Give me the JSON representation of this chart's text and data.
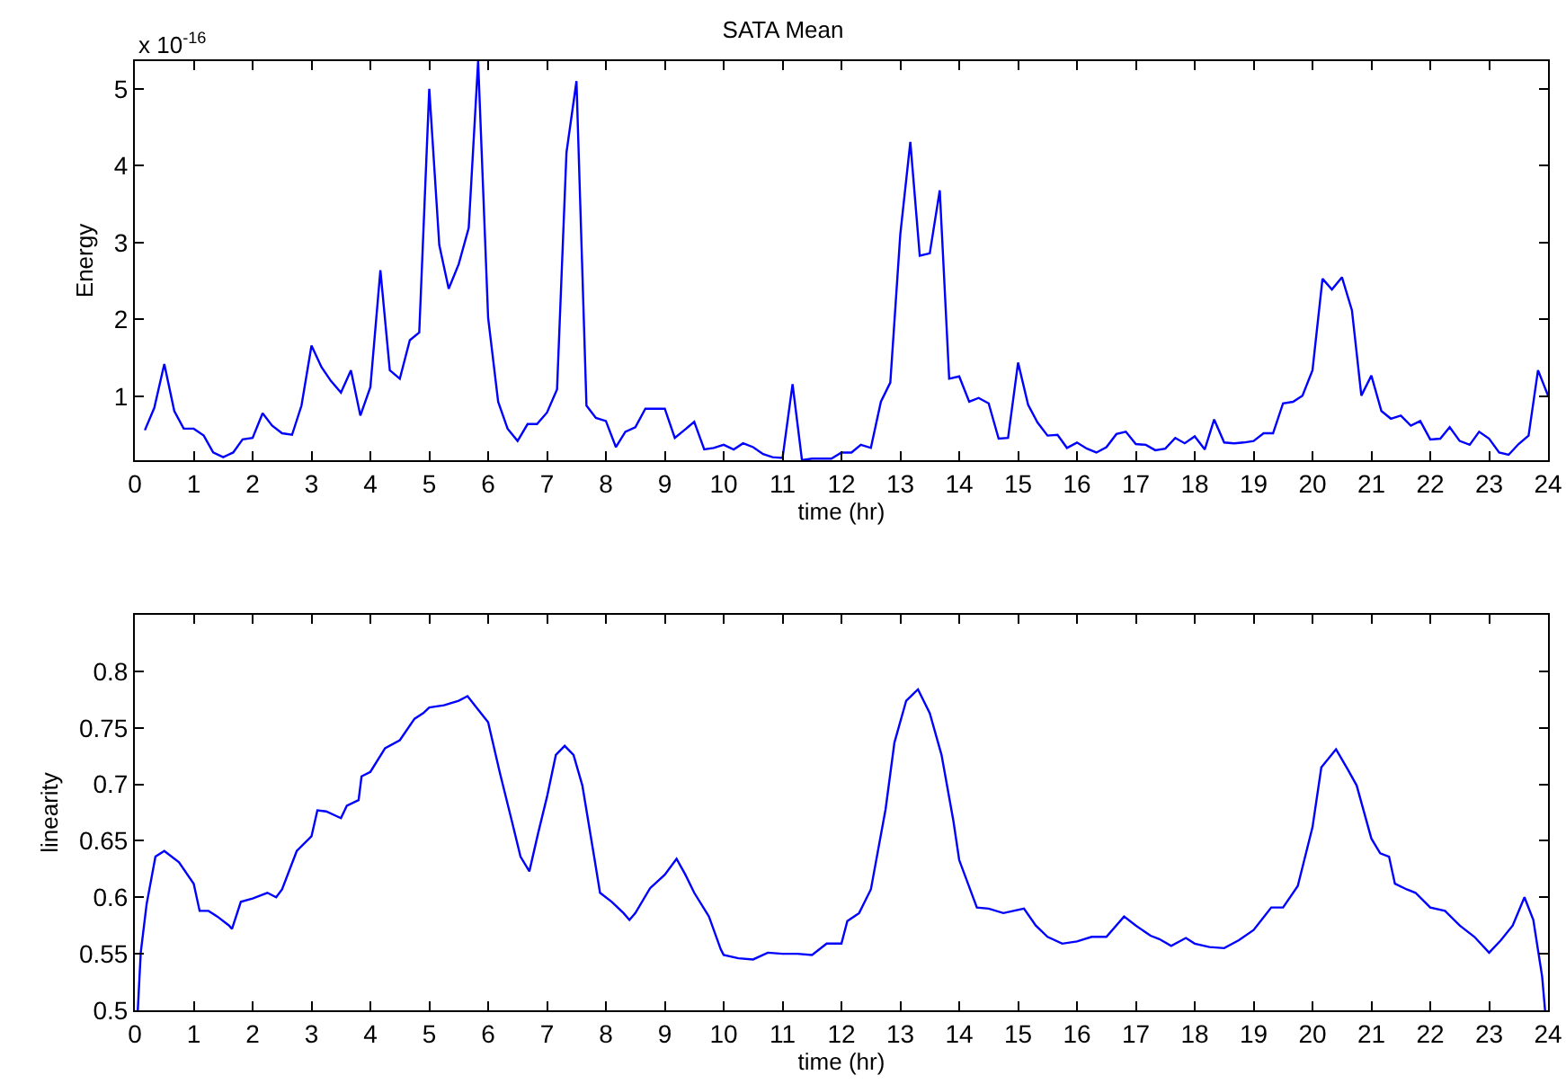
{
  "chart_data": [
    {
      "type": "line",
      "title": "SATA Mean",
      "xlabel": "time (hr)",
      "ylabel": "Energy",
      "annotations": [
        "x 10$^{-16}$"
      ],
      "x": [
        0.17,
        0.33,
        0.5,
        0.67,
        0.83,
        1,
        1.17,
        1.33,
        1.5,
        1.67,
        1.83,
        2,
        2.17,
        2.33,
        2.5,
        2.67,
        2.83,
        3,
        3.17,
        3.33,
        3.5,
        3.67,
        3.83,
        4,
        4.17,
        4.33,
        4.5,
        4.67,
        4.83,
        5,
        5.17,
        5.33,
        5.5,
        5.67,
        5.83,
        6,
        6.17,
        6.33,
        6.5,
        6.67,
        6.83,
        7,
        7.17,
        7.33,
        7.5,
        7.67,
        7.83,
        8,
        8.17,
        8.33,
        8.5,
        8.67,
        8.83,
        9,
        9.17,
        9.33,
        9.5,
        9.67,
        9.83,
        10,
        10.17,
        10.33,
        10.5,
        10.67,
        10.83,
        11,
        11.17,
        11.33,
        11.5,
        11.67,
        11.83,
        12,
        12.17,
        12.33,
        12.5,
        12.67,
        12.83,
        13,
        13.17,
        13.33,
        13.5,
        13.67,
        13.83,
        14,
        14.17,
        14.33,
        14.5,
        14.67,
        14.83,
        15,
        15.17,
        15.33,
        15.5,
        15.67,
        15.83,
        16,
        16.17,
        16.33,
        16.5,
        16.67,
        16.83,
        17,
        17.17,
        17.33,
        17.5,
        17.67,
        17.83,
        18,
        18.17,
        18.33,
        18.5,
        18.67,
        18.83,
        19,
        19.17,
        19.33,
        19.5,
        19.67,
        19.83,
        20,
        20.17,
        20.33,
        20.5,
        20.67,
        20.83,
        21,
        21.17,
        21.33,
        21.5,
        21.67,
        21.83,
        22,
        22.17,
        22.33,
        22.5,
        22.67,
        22.83,
        23,
        23.17,
        23.33,
        23.5,
        23.67,
        23.83,
        24
      ],
      "series": [
        {
          "color": "#0000ff",
          "values": [
            0.56,
            0.85,
            1.42,
            0.81,
            0.58,
            0.58,
            0.49,
            0.27,
            0.21,
            0.27,
            0.44,
            0.46,
            0.78,
            0.62,
            0.52,
            0.5,
            0.88,
            1.66,
            1.38,
            1.2,
            1.05,
            1.34,
            0.75,
            1.12,
            2.64,
            1.34,
            1.23,
            1.73,
            1.83,
            5.0,
            2.97,
            2.4,
            2.72,
            3.19,
            5.36,
            2.02,
            0.93,
            0.58,
            0.42,
            0.64,
            0.64,
            0.79,
            1.09,
            4.17,
            5.1,
            0.88,
            0.72,
            0.68,
            0.34,
            0.54,
            0.6,
            0.84,
            0.84,
            0.84,
            0.46,
            0.56,
            0.67,
            0.31,
            0.33,
            0.37,
            0.31,
            0.39,
            0.34,
            0.25,
            0.21,
            0.2,
            1.16,
            0.17,
            0.19,
            0.19,
            0.19,
            0.27,
            0.27,
            0.37,
            0.33,
            0.93,
            1.18,
            3.11,
            4.31,
            2.83,
            2.86,
            3.68,
            1.23,
            1.26,
            0.93,
            0.98,
            0.91,
            0.45,
            0.46,
            1.44,
            0.89,
            0.66,
            0.49,
            0.5,
            0.33,
            0.4,
            0.32,
            0.27,
            0.34,
            0.51,
            0.54,
            0.38,
            0.37,
            0.3,
            0.32,
            0.46,
            0.39,
            0.48,
            0.31,
            0.7,
            0.4,
            0.39,
            0.4,
            0.42,
            0.52,
            0.52,
            0.91,
            0.93,
            1.01,
            1.34,
            2.53,
            2.39,
            2.55,
            2.12,
            1.01,
            1.27,
            0.81,
            0.71,
            0.75,
            0.62,
            0.68,
            0.44,
            0.45,
            0.6,
            0.42,
            0.37,
            0.54,
            0.45,
            0.27,
            0.24,
            0.38,
            0.49,
            1.34,
            1.01
          ]
        }
      ],
      "xlim": [
        0,
        24
      ],
      "xticks": [
        0,
        1,
        2,
        3,
        4,
        5,
        6,
        7,
        8,
        9,
        10,
        11,
        12,
        13,
        14,
        15,
        16,
        17,
        18,
        19,
        20,
        21,
        22,
        23,
        24
      ],
      "ylim": [
        0.17,
        5.36
      ],
      "yticks": [
        1,
        2,
        3,
        4,
        5
      ]
    },
    {
      "type": "line",
      "xlabel": "time (hr)",
      "ylabel": "linearity",
      "x": [
        0.05,
        0.1,
        0.2,
        0.35,
        0.5,
        0.75,
        1.0,
        1.1,
        1.25,
        1.4,
        1.6,
        1.65,
        1.8,
        2.0,
        2.25,
        2.4,
        2.5,
        2.75,
        3.0,
        3.1,
        3.25,
        3.5,
        3.6,
        3.8,
        3.85,
        4.0,
        4.25,
        4.5,
        4.75,
        4.9,
        5.0,
        5.25,
        5.5,
        5.65,
        5.8,
        6.0,
        6.2,
        6.4,
        6.55,
        6.7,
        6.85,
        7.0,
        7.15,
        7.3,
        7.45,
        7.6,
        7.8,
        7.9,
        8.1,
        8.3,
        8.4,
        8.5,
        8.75,
        9.0,
        9.2,
        9.35,
        9.5,
        9.75,
        9.95,
        10.0,
        10.25,
        10.5,
        10.75,
        11.0,
        11.25,
        11.5,
        11.75,
        12.0,
        12.1,
        12.3,
        12.5,
        12.75,
        12.9,
        13.1,
        13.3,
        13.5,
        13.7,
        13.9,
        14.0,
        14.3,
        14.5,
        14.75,
        15.1,
        15.3,
        15.5,
        15.75,
        16.0,
        16.25,
        16.5,
        16.8,
        17.0,
        17.25,
        17.4,
        17.6,
        17.85,
        18.0,
        18.25,
        18.5,
        18.75,
        19.0,
        19.3,
        19.5,
        19.75,
        20.0,
        20.15,
        20.4,
        20.6,
        20.75,
        21.0,
        21.15,
        21.3,
        21.4,
        21.6,
        21.75,
        22.0,
        22.25,
        22.5,
        22.75,
        23.0,
        23.2,
        23.4,
        23.6,
        23.75,
        23.9,
        23.95
      ],
      "series": [
        {
          "color": "#0000ff",
          "values": [
            0.5,
            0.551,
            0.594,
            0.636,
            0.641,
            0.631,
            0.612,
            0.588,
            0.588,
            0.583,
            0.575,
            0.572,
            0.596,
            0.599,
            0.604,
            0.6,
            0.607,
            0.641,
            0.654,
            0.677,
            0.676,
            0.67,
            0.681,
            0.686,
            0.707,
            0.711,
            0.732,
            0.739,
            0.758,
            0.763,
            0.768,
            0.77,
            0.774,
            0.778,
            0.768,
            0.755,
            0.71,
            0.668,
            0.636,
            0.623,
            0.657,
            0.689,
            0.726,
            0.734,
            0.726,
            0.699,
            0.636,
            0.604,
            0.596,
            0.586,
            0.58,
            0.586,
            0.608,
            0.62,
            0.634,
            0.62,
            0.604,
            0.583,
            0.554,
            0.549,
            0.546,
            0.545,
            0.551,
            0.55,
            0.55,
            0.549,
            0.559,
            0.559,
            0.579,
            0.586,
            0.607,
            0.678,
            0.737,
            0.774,
            0.784,
            0.763,
            0.726,
            0.668,
            0.633,
            0.591,
            0.59,
            0.586,
            0.59,
            0.575,
            0.565,
            0.559,
            0.561,
            0.565,
            0.565,
            0.583,
            0.575,
            0.566,
            0.563,
            0.557,
            0.564,
            0.559,
            0.556,
            0.555,
            0.562,
            0.571,
            0.591,
            0.591,
            0.61,
            0.662,
            0.715,
            0.731,
            0.713,
            0.699,
            0.652,
            0.639,
            0.636,
            0.612,
            0.607,
            0.604,
            0.591,
            0.588,
            0.575,
            0.565,
            0.551,
            0.562,
            0.575,
            0.6,
            0.58,
            0.53,
            0.5
          ]
        }
      ],
      "xlim": [
        0,
        24
      ],
      "xticks": [
        0,
        1,
        2,
        3,
        4,
        5,
        6,
        7,
        8,
        9,
        10,
        11,
        12,
        13,
        14,
        15,
        16,
        17,
        18,
        19,
        20,
        21,
        22,
        23,
        24
      ],
      "ylim": [
        0.5,
        0.85
      ],
      "yticks": [
        0.5,
        0.55,
        0.6,
        0.65,
        0.7,
        0.75,
        0.8
      ]
    }
  ]
}
